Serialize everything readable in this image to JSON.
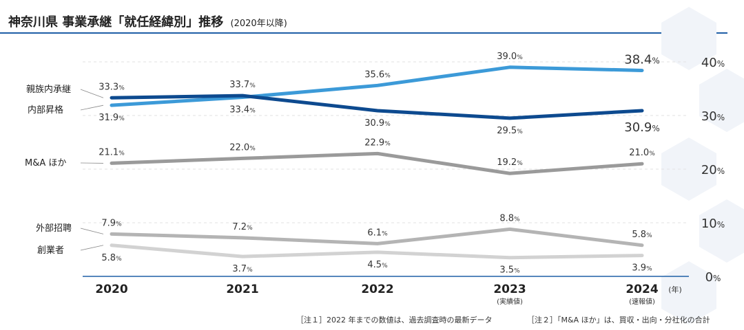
{
  "header": {
    "title": "神奈川県 事業承継「就任経緯別」推移",
    "subtitle": "(2020年以降)"
  },
  "chart_data": {
    "type": "line",
    "x": [
      "2020",
      "2021",
      "2022",
      "2023",
      "2024"
    ],
    "x_sub": [
      "",
      "",
      "",
      "(実績値)",
      "(速報値)"
    ],
    "x_unit": "(年)",
    "ylim": [
      0,
      40
    ],
    "y_ticks": [
      {
        "value": 0,
        "label": "0",
        "unit": "%"
      },
      {
        "value": 10,
        "label": "10",
        "unit": "%"
      },
      {
        "value": 20,
        "label": "20",
        "unit": "%"
      },
      {
        "value": 30,
        "label": "30",
        "unit": "%"
      },
      {
        "value": 40,
        "label": "40",
        "unit": "%"
      }
    ],
    "grid": true,
    "series": [
      {
        "name": "親族内承継",
        "values": [
          33.3,
          33.7,
          30.9,
          29.5,
          30.9
        ],
        "labels": [
          "33.3",
          "33.7",
          "30.9",
          "29.5",
          "30.9"
        ],
        "color": "#0d4a8f"
      },
      {
        "name": "内部昇格",
        "values": [
          31.9,
          33.4,
          35.6,
          39.0,
          38.4
        ],
        "labels": [
          "31.9",
          "33.4",
          "35.6",
          "39.0",
          "38.4"
        ],
        "color": "#3c9ad8"
      },
      {
        "name": "M&A ほか",
        "values": [
          21.1,
          22.0,
          22.9,
          19.2,
          21.0
        ],
        "labels": [
          "21.1",
          "22.0",
          "22.9",
          "19.2",
          "21.0"
        ],
        "color": "#9a9a9a"
      },
      {
        "name": "外部招聘",
        "values": [
          7.9,
          7.2,
          6.1,
          8.8,
          5.8
        ],
        "labels": [
          "7.9",
          "7.2",
          "6.1",
          "8.8",
          "5.8"
        ],
        "color": "#b4b4b4"
      },
      {
        "name": "創業者",
        "values": [
          5.8,
          3.7,
          4.5,
          3.5,
          3.9
        ],
        "labels": [
          "5.8",
          "3.7",
          "4.5",
          "3.5",
          "3.9"
        ],
        "color": "#d2d2d2"
      }
    ],
    "value_unit": "%"
  },
  "notes": [
    "［注１］2022 年までの数値は、過去調査時の最新データ",
    "［注２］「M&A ほか」は、買収・出向・分社化の合計"
  ]
}
